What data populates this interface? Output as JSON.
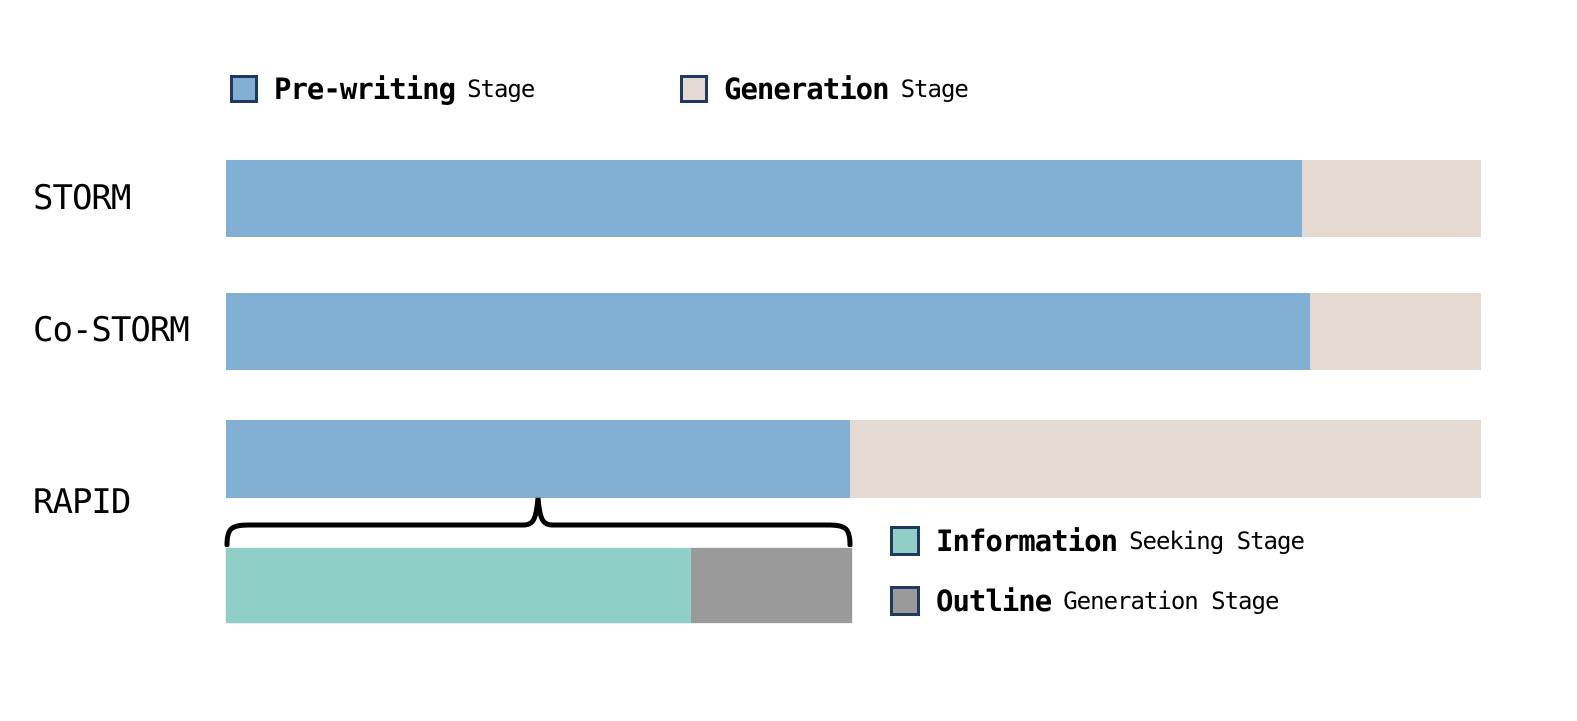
{
  "colors": {
    "prewriting_blue": "#81AFD3",
    "generation_beige": "#E5DAD1",
    "info_seeking_teal": "#8FCFC7",
    "outline_gray": "#9A9A9A",
    "swatch_border": "#1F3A5E",
    "brace": "#000000",
    "text": "#000000",
    "background": "#FFFFFF"
  },
  "legend_top": {
    "items": [
      {
        "emph": "Pre-writing",
        "rest": "Stage"
      },
      {
        "emph": "Generation",
        "rest": "Stage"
      }
    ]
  },
  "legend_sub": {
    "items": [
      {
        "emph": "Information",
        "rest": "Seeking Stage"
      },
      {
        "emph": "Outline",
        "rest": "Generation Stage"
      }
    ]
  },
  "chart_data": {
    "type": "bar",
    "orientation": "horizontal",
    "stacked": true,
    "units": "fraction of pipeline (estimated from bar lengths; no numeric axis shown)",
    "categories": [
      "STORM",
      "Co-STORM",
      "RAPID"
    ],
    "series": [
      {
        "name": "Pre-writing Stage",
        "color": "#81AFD3",
        "values": [
          0.857,
          0.864,
          0.497
        ]
      },
      {
        "name": "Generation Stage",
        "color": "#E5DAD1",
        "values": [
          0.143,
          0.136,
          0.503
        ]
      }
    ],
    "rapid_prewriting_breakdown": {
      "description": "Sub-bar beneath RAPID pre-writing segment, linked by a curly brace",
      "series": [
        {
          "name": "Information Seeking Stage",
          "color": "#8FCFC7",
          "value": 0.743
        },
        {
          "name": "Outline Generation Stage",
          "color": "#9A9A9A",
          "value": 0.257
        }
      ]
    },
    "legend_position": [
      "top-left",
      "right-of-breakdown-bar"
    ],
    "grid": false,
    "axes_visible": false,
    "title": ""
  }
}
